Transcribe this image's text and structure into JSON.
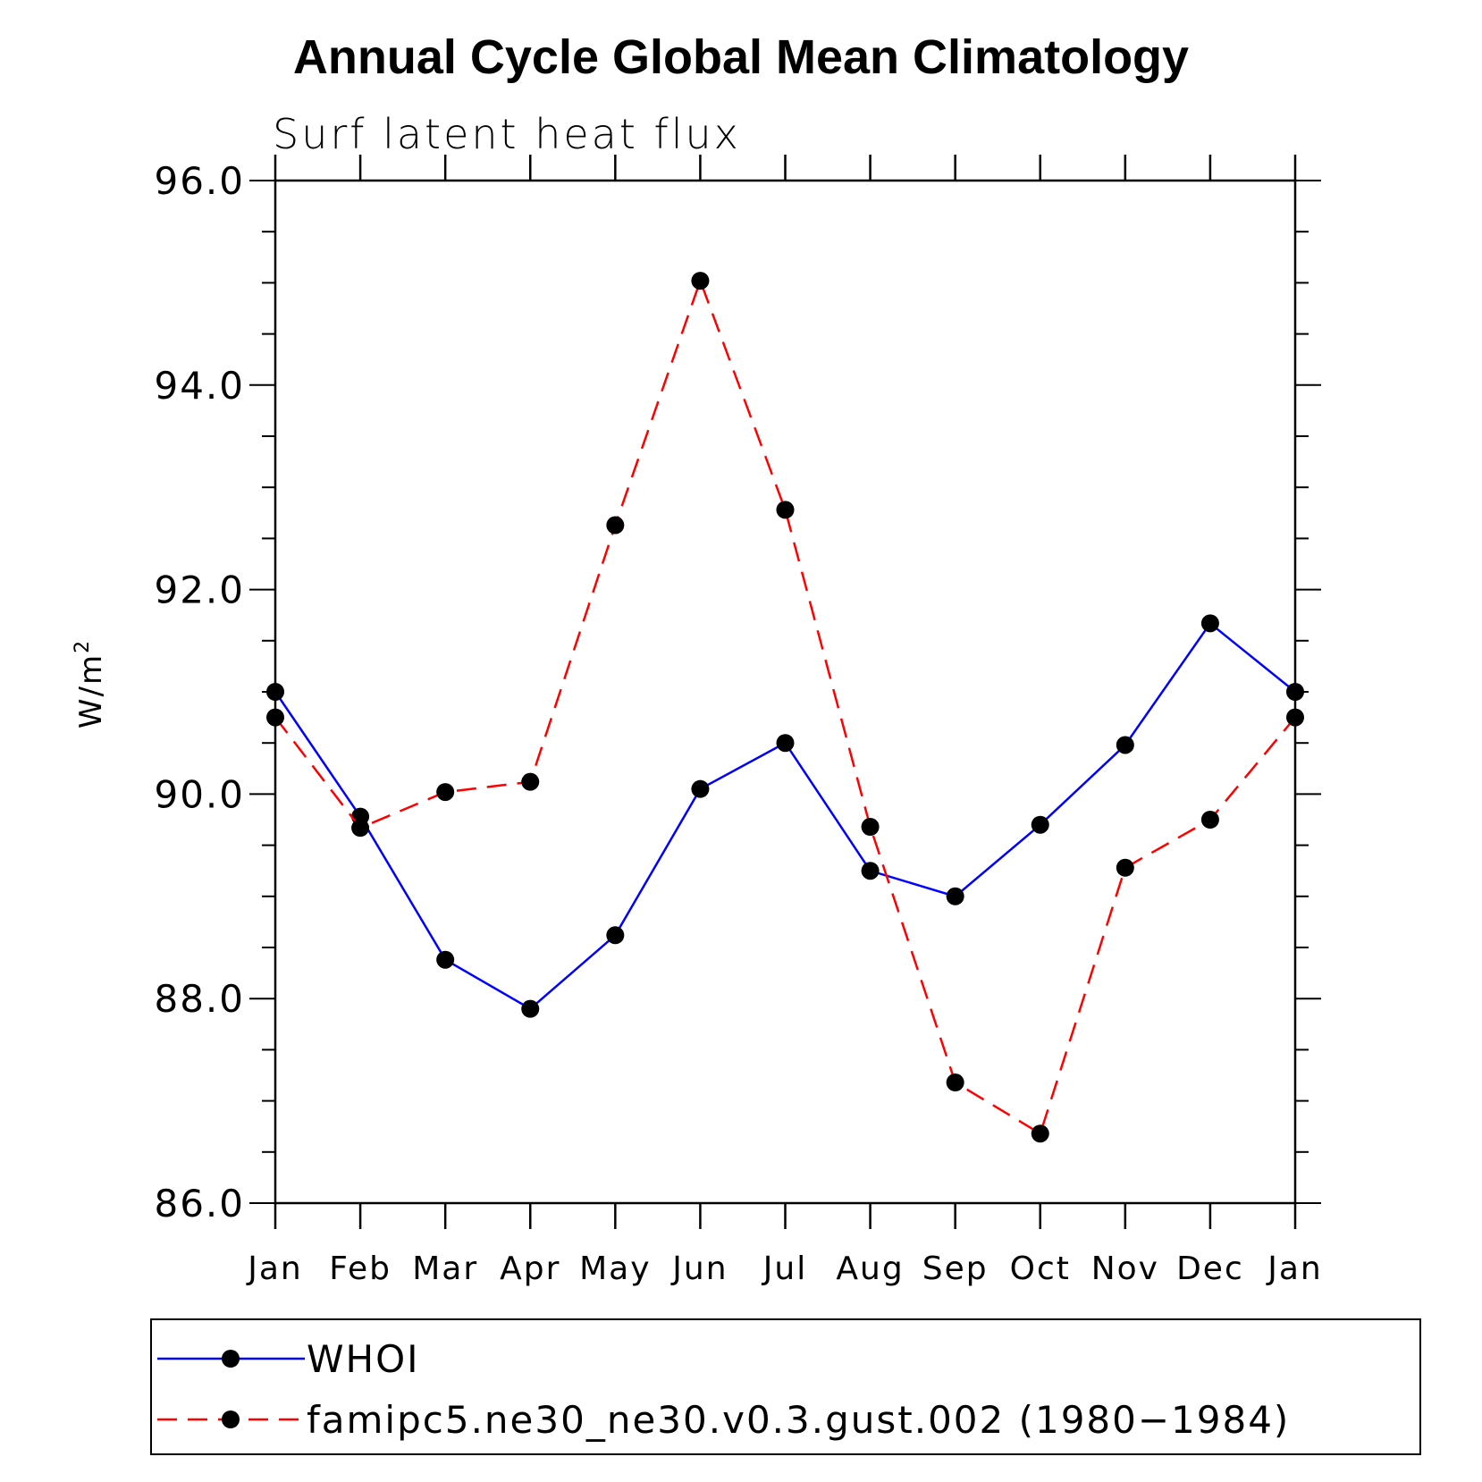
{
  "chart_data": {
    "type": "line",
    "title": "Annual Cycle Global Mean Climatology",
    "subtitle": "Surf latent heat flux",
    "xlabel": "",
    "ylabel": {
      "base": "W/m",
      "superscript": "2"
    },
    "categories": [
      "Jan",
      "Feb",
      "Mar",
      "Apr",
      "May",
      "Jun",
      "Jul",
      "Aug",
      "Sep",
      "Oct",
      "Nov",
      "Dec",
      "Jan"
    ],
    "ylim": [
      86.0,
      96.0
    ],
    "yticks": [
      86.0,
      88.0,
      90.0,
      92.0,
      94.0,
      96.0
    ],
    "ytick_labels": [
      "86.0",
      "88.0",
      "90.0",
      "92.0",
      "94.0",
      "96.0"
    ],
    "y_minor_step": 0.5,
    "grid": false,
    "legend_position": "bottom",
    "series": [
      {
        "name": "WHOI",
        "color": "#0000ff",
        "linestyle": "solid",
        "marker": "circle",
        "values": [
          91.0,
          89.78,
          88.38,
          87.9,
          88.62,
          90.05,
          90.5,
          89.25,
          89.0,
          89.7,
          90.48,
          91.67,
          91.0
        ]
      },
      {
        "name": "famipc5.ne30_ne30.v0.3.gust.002 (1980−1984)",
        "color": "#ff0000",
        "linestyle": "dashed",
        "marker": "circle",
        "values": [
          90.75,
          89.67,
          90.02,
          90.12,
          92.63,
          95.02,
          92.78,
          89.68,
          87.18,
          86.68,
          89.28,
          89.75,
          90.75
        ]
      }
    ]
  }
}
